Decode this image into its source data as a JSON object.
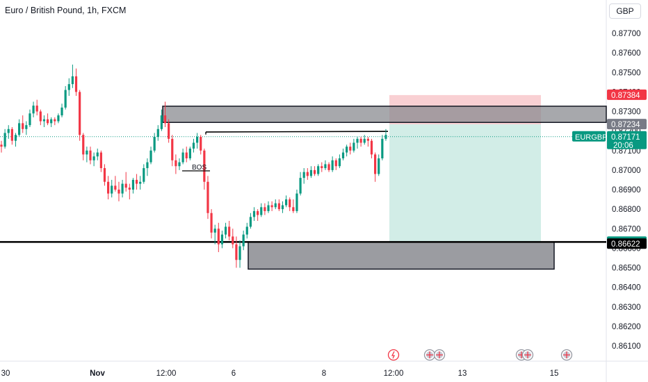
{
  "header": {
    "title": "Euro / British Pound, 1h, FXCM",
    "currency_button": "GBP"
  },
  "chart_data": {
    "type": "candlestick",
    "title": "Euro / British Pound, 1h, FXCM",
    "yaxis": {
      "ticks": [
        "0.87700",
        "0.87600",
        "0.87500",
        "0.87400",
        "0.87300",
        "0.87200",
        "0.87100",
        "0.87000",
        "0.86900",
        "0.86800",
        "0.86700",
        "0.86600",
        "0.86500",
        "0.86400",
        "0.86300",
        "0.86200",
        "0.86100"
      ]
    },
    "xaxis": {
      "ticks": [
        "30",
        "Nov",
        "12:00",
        "6",
        "8",
        "12:00",
        "13",
        "15"
      ]
    },
    "annotations": {
      "bos_label": "BOS",
      "supply_zone": [
        0.87244,
        0.87327
      ],
      "demand_zone": [
        0.86493,
        0.86632
      ],
      "horizontal_level": 0.86632,
      "bos_level": 0.87195,
      "position": {
        "stop": 0.87384,
        "entry": 0.87234,
        "target": 0.86632
      }
    },
    "price_tags": [
      {
        "label": "0.87384",
        "value": 0.87384,
        "color": "#f23645"
      },
      {
        "label": "0.87234",
        "value": 0.87234,
        "color": "#787b86"
      },
      {
        "label": "0.87171",
        "value": 0.87171,
        "color": "#089981",
        "time": "20:06",
        "symbol": "EURGBP"
      },
      {
        "label": "0.86632",
        "value": 0.86632,
        "color": "#089981"
      },
      {
        "label": "0.86622",
        "value": 0.86622,
        "color": "#000000"
      }
    ],
    "colors": {
      "up": "#089981",
      "down": "#f23645",
      "stop_zone": "#f7c4c8",
      "target_zone": "#cdebe4",
      "zone_fill": "#8a8b90"
    },
    "candles": [
      [
        0.8713,
        0.8715,
        0.8709,
        0.8712
      ],
      [
        0.8712,
        0.8721,
        0.8711,
        0.8719
      ],
      [
        0.8719,
        0.8723,
        0.8716,
        0.8721
      ],
      [
        0.8721,
        0.8722,
        0.8713,
        0.8715
      ],
      [
        0.8715,
        0.8719,
        0.8712,
        0.8718
      ],
      [
        0.8718,
        0.8726,
        0.8717,
        0.8724
      ],
      [
        0.8724,
        0.8728,
        0.8719,
        0.8721
      ],
      [
        0.8721,
        0.8725,
        0.8718,
        0.8723
      ],
      [
        0.8723,
        0.8731,
        0.8722,
        0.8729
      ],
      [
        0.8729,
        0.8735,
        0.8727,
        0.8733
      ],
      [
        0.8733,
        0.8736,
        0.8728,
        0.873
      ],
      [
        0.873,
        0.8731,
        0.8723,
        0.8725
      ],
      [
        0.8725,
        0.8728,
        0.8722,
        0.8726
      ],
      [
        0.8726,
        0.8729,
        0.8723,
        0.8724
      ],
      [
        0.8724,
        0.8727,
        0.8722,
        0.8726
      ],
      [
        0.8726,
        0.8727,
        0.8723,
        0.8725
      ],
      [
        0.8725,
        0.8729,
        0.8724,
        0.8728
      ],
      [
        0.8728,
        0.8734,
        0.8727,
        0.8732
      ],
      [
        0.8732,
        0.8743,
        0.8731,
        0.8741
      ],
      [
        0.8741,
        0.8747,
        0.8738,
        0.8744
      ],
      [
        0.8744,
        0.8754,
        0.8742,
        0.8748
      ],
      [
        0.8748,
        0.8752,
        0.8738,
        0.874
      ],
      [
        0.874,
        0.8741,
        0.8715,
        0.8718
      ],
      [
        0.8718,
        0.8719,
        0.8705,
        0.8708
      ],
      [
        0.8708,
        0.8712,
        0.8704,
        0.871
      ],
      [
        0.871,
        0.8712,
        0.8703,
        0.8705
      ],
      [
        0.8705,
        0.8709,
        0.8702,
        0.8707
      ],
      [
        0.8707,
        0.8711,
        0.8705,
        0.8709
      ],
      [
        0.8709,
        0.871,
        0.8699,
        0.8701
      ],
      [
        0.8701,
        0.8703,
        0.8692,
        0.8694
      ],
      [
        0.8694,
        0.8697,
        0.8685,
        0.8688
      ],
      [
        0.8688,
        0.8695,
        0.8686,
        0.8692
      ],
      [
        0.8692,
        0.8697,
        0.8689,
        0.869
      ],
      [
        0.869,
        0.8694,
        0.8684,
        0.8688
      ],
      [
        0.8688,
        0.8695,
        0.8686,
        0.8693
      ],
      [
        0.8693,
        0.8699,
        0.8689,
        0.8691
      ],
      [
        0.8691,
        0.8693,
        0.8685,
        0.869
      ],
      [
        0.869,
        0.8696,
        0.8688,
        0.8695
      ],
      [
        0.8695,
        0.8698,
        0.869,
        0.8693
      ],
      [
        0.8693,
        0.8697,
        0.869,
        0.8694
      ],
      [
        0.8694,
        0.8703,
        0.8693,
        0.8701
      ],
      [
        0.8701,
        0.8706,
        0.8697,
        0.8704
      ],
      [
        0.8704,
        0.8712,
        0.8703,
        0.871
      ],
      [
        0.871,
        0.8719,
        0.8709,
        0.8717
      ],
      [
        0.8717,
        0.8723,
        0.8715,
        0.8721
      ],
      [
        0.8721,
        0.8731,
        0.872,
        0.8728
      ],
      [
        0.8728,
        0.8735,
        0.8722,
        0.8724
      ],
      [
        0.8724,
        0.8726,
        0.8714,
        0.8716
      ],
      [
        0.8716,
        0.8718,
        0.8702,
        0.8705
      ],
      [
        0.8705,
        0.8708,
        0.8698,
        0.8702
      ],
      [
        0.8702,
        0.8706,
        0.87,
        0.8704
      ],
      [
        0.8704,
        0.8711,
        0.8703,
        0.8709
      ],
      [
        0.8709,
        0.8712,
        0.8704,
        0.8706
      ],
      [
        0.8706,
        0.8712,
        0.8705,
        0.8711
      ],
      [
        0.8711,
        0.8716,
        0.8709,
        0.8714
      ],
      [
        0.8714,
        0.8719,
        0.8711,
        0.8717
      ],
      [
        0.8717,
        0.8718,
        0.8708,
        0.871
      ],
      [
        0.871,
        0.8711,
        0.869,
        0.8694
      ],
      [
        0.8694,
        0.8697,
        0.8675,
        0.8678
      ],
      [
        0.8678,
        0.868,
        0.8665,
        0.8668
      ],
      [
        0.8668,
        0.8672,
        0.8662,
        0.867
      ],
      [
        0.867,
        0.8673,
        0.8658,
        0.8662
      ],
      [
        0.8662,
        0.8669,
        0.866,
        0.8667
      ],
      [
        0.8667,
        0.8673,
        0.8665,
        0.8671
      ],
      [
        0.8671,
        0.8674,
        0.8664,
        0.8666
      ],
      [
        0.8666,
        0.867,
        0.866,
        0.8662
      ],
      [
        0.8662,
        0.8666,
        0.865,
        0.8654
      ],
      [
        0.8654,
        0.8664,
        0.865,
        0.8661
      ],
      [
        0.8661,
        0.8669,
        0.8659,
        0.8667
      ],
      [
        0.8667,
        0.8673,
        0.8665,
        0.8671
      ],
      [
        0.8671,
        0.8678,
        0.867,
        0.8676
      ],
      [
        0.8676,
        0.8681,
        0.8674,
        0.8679
      ],
      [
        0.8679,
        0.868,
        0.8674,
        0.8677
      ],
      [
        0.8677,
        0.8683,
        0.8676,
        0.8681
      ],
      [
        0.8681,
        0.8683,
        0.8677,
        0.8679
      ],
      [
        0.8679,
        0.8684,
        0.8678,
        0.8682
      ],
      [
        0.8682,
        0.8684,
        0.8679,
        0.8681
      ],
      [
        0.8681,
        0.8685,
        0.868,
        0.8683
      ],
      [
        0.8683,
        0.8685,
        0.8679,
        0.868
      ],
      [
        0.868,
        0.8684,
        0.8678,
        0.8682
      ],
      [
        0.8682,
        0.8687,
        0.8681,
        0.8685
      ],
      [
        0.8685,
        0.8686,
        0.8679,
        0.8681
      ],
      [
        0.8681,
        0.8685,
        0.8678,
        0.8679
      ],
      [
        0.8679,
        0.869,
        0.8678,
        0.8688
      ],
      [
        0.8688,
        0.8699,
        0.8687,
        0.8696
      ],
      [
        0.8696,
        0.8701,
        0.8693,
        0.8699
      ],
      [
        0.8699,
        0.8701,
        0.8695,
        0.8697
      ],
      [
        0.8697,
        0.8702,
        0.8696,
        0.87
      ],
      [
        0.87,
        0.8702,
        0.8697,
        0.8698
      ],
      [
        0.8698,
        0.8703,
        0.8697,
        0.8702
      ],
      [
        0.8702,
        0.8704,
        0.8699,
        0.8701
      ],
      [
        0.8701,
        0.8705,
        0.87,
        0.8703
      ],
      [
        0.8703,
        0.8704,
        0.8699,
        0.87
      ],
      [
        0.87,
        0.8707,
        0.8699,
        0.8705
      ],
      [
        0.8705,
        0.8706,
        0.87,
        0.8702
      ],
      [
        0.8702,
        0.8708,
        0.8701,
        0.8706
      ],
      [
        0.8706,
        0.8711,
        0.8705,
        0.8709
      ],
      [
        0.8709,
        0.8713,
        0.8707,
        0.8712
      ],
      [
        0.8712,
        0.8714,
        0.8708,
        0.871
      ],
      [
        0.871,
        0.8716,
        0.8709,
        0.8714
      ],
      [
        0.8714,
        0.8717,
        0.8711,
        0.8716
      ],
      [
        0.8716,
        0.8717,
        0.8712,
        0.8714
      ],
      [
        0.8714,
        0.8718,
        0.8713,
        0.8716
      ],
      [
        0.8716,
        0.8717,
        0.8712,
        0.8715
      ],
      [
        0.8715,
        0.8716,
        0.8706,
        0.8708
      ],
      [
        0.8708,
        0.8709,
        0.8694,
        0.8698
      ],
      [
        0.8698,
        0.8708,
        0.8697,
        0.8706
      ],
      [
        0.8706,
        0.8718,
        0.8705,
        0.8716
      ],
      [
        0.8716,
        0.8721,
        0.8715,
        0.8718
      ]
    ]
  }
}
